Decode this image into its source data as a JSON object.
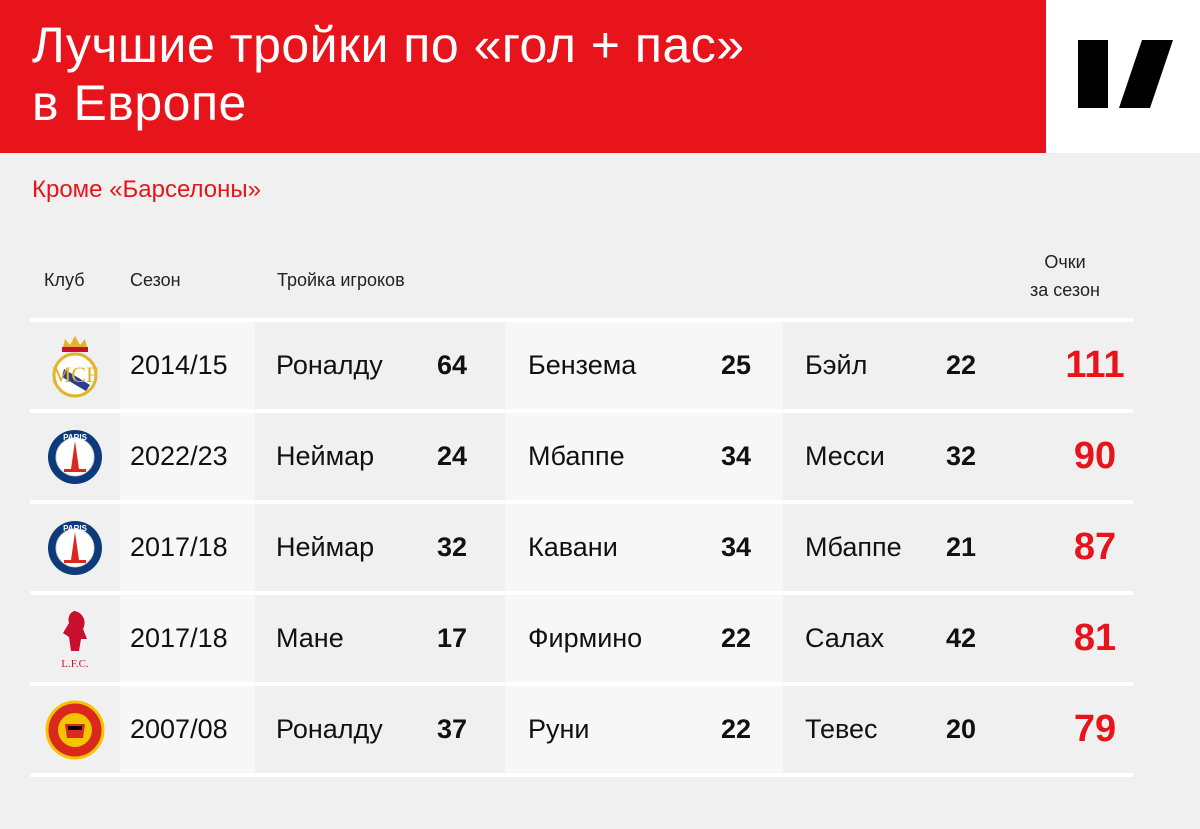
{
  "header": {
    "title_line1": "Лучшие тройки по «гол + пас»",
    "title_line2": "в Европе",
    "subtitle": "Кроме «Барселоны»",
    "brand_color": "#e8141b"
  },
  "columns": {
    "club": "Клуб",
    "season": "Сезон",
    "trio": "Тройка игроков",
    "points_line1": "Очки",
    "points_line2": "за сезон"
  },
  "chart_data": {
    "type": "table",
    "columns": [
      "Клуб",
      "Сезон",
      "Тройка игроков",
      "Очки за сезон"
    ],
    "rows": [
      {
        "club_logo": "real-madrid-crest",
        "season": "2014/15",
        "players": [
          {
            "name": "Роналду",
            "value": "64"
          },
          {
            "name": "Бензема",
            "value": "25"
          },
          {
            "name": "Бэйл",
            "value": "22"
          }
        ],
        "points": "111"
      },
      {
        "club_logo": "psg-crest",
        "season": "2022/23",
        "players": [
          {
            "name": "Неймар",
            "value": "24"
          },
          {
            "name": "Мбаппе",
            "value": "34"
          },
          {
            "name": "Месси",
            "value": "32"
          }
        ],
        "points": "90"
      },
      {
        "club_logo": "psg-crest",
        "season": "2017/18",
        "players": [
          {
            "name": "Неймар",
            "value": "32"
          },
          {
            "name": "Кавани",
            "value": "34"
          },
          {
            "name": "Мбаппе",
            "value": "21"
          }
        ],
        "points": "87"
      },
      {
        "club_logo": "liverpool-crest",
        "season": "2017/18",
        "players": [
          {
            "name": "Мане",
            "value": "17"
          },
          {
            "name": "Фирмино",
            "value": "22"
          },
          {
            "name": "Салах",
            "value": "42"
          }
        ],
        "points": "81"
      },
      {
        "club_logo": "manchester-united-crest",
        "season": "2007/08",
        "players": [
          {
            "name": "Роналду",
            "value": "37"
          },
          {
            "name": "Руни",
            "value": "22"
          },
          {
            "name": "Тевес",
            "value": "20"
          }
        ],
        "points": "79"
      }
    ]
  }
}
